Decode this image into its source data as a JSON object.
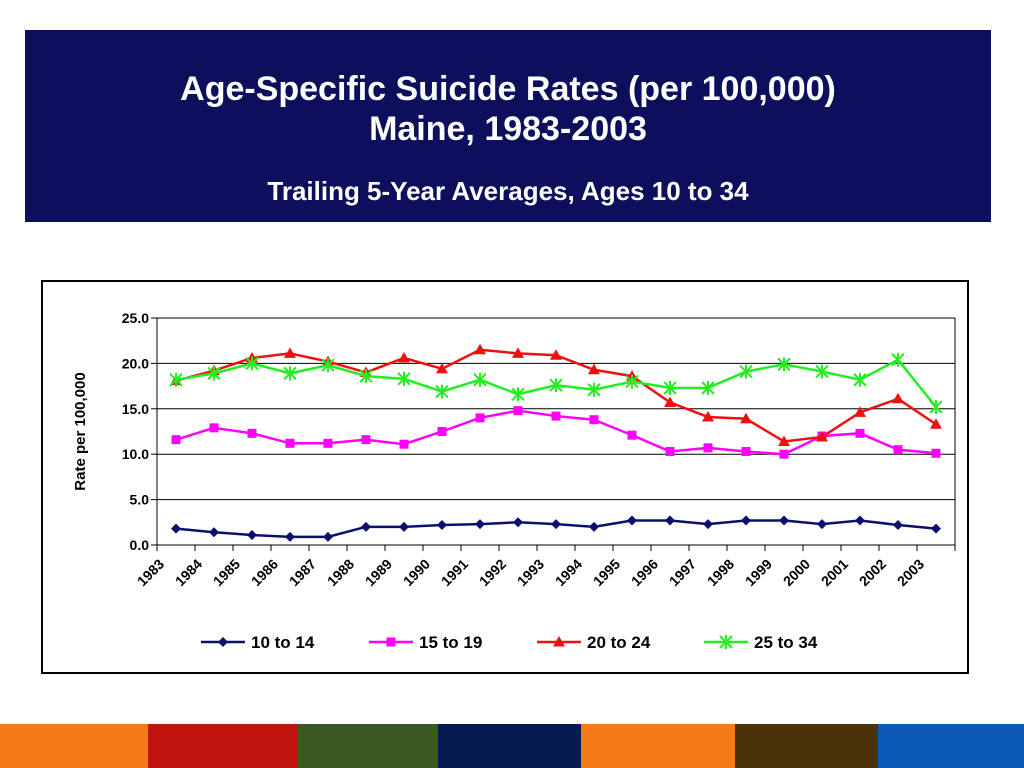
{
  "banner": {
    "title_line1": "Age-Specific Suicide Rates (per 100,000)",
    "title_line2": "Maine, 1983-2003",
    "subtitle": "Trailing 5-Year Averages, Ages 10 to 34",
    "background": "#0b0f5c"
  },
  "chart_data": {
    "type": "line",
    "title": "",
    "xlabel": "",
    "ylabel": "Rate per 100,000",
    "ylim": [
      0,
      25
    ],
    "yticks": [
      "0.0",
      "5.0",
      "10.0",
      "15.0",
      "20.0",
      "25.0"
    ],
    "grid": "horizontal",
    "legend": "bottom",
    "categories": [
      "1983",
      "1984",
      "1985",
      "1986",
      "1987",
      "1988",
      "1989",
      "1990",
      "1991",
      "1992",
      "1993",
      "1994",
      "1995",
      "1996",
      "1997",
      "1998",
      "1999",
      "2000",
      "2001",
      "2002",
      "2003"
    ],
    "x_points_per_category": 1.3,
    "series": [
      {
        "name": "10 to 14",
        "color": "#0b0f6e",
        "marker": "diamond",
        "values": [
          1.8,
          1.4,
          1.1,
          0.9,
          0.9,
          2.0,
          2.0,
          2.2,
          2.3,
          2.5,
          2.3,
          2.0,
          2.7,
          2.7,
          2.3,
          2.7,
          2.7,
          2.3,
          2.7,
          2.2,
          1.8
        ]
      },
      {
        "name": "15 to 19",
        "color": "#ff00ff",
        "marker": "square",
        "values": [
          11.6,
          12.9,
          12.3,
          11.2,
          11.2,
          11.6,
          11.1,
          12.5,
          14.0,
          14.8,
          14.2,
          13.8,
          12.1,
          10.3,
          10.7,
          10.3,
          10.0,
          12.0,
          12.3,
          10.5,
          10.1
        ]
      },
      {
        "name": "20 to 24",
        "color": "#ee1111",
        "marker": "triangle",
        "values": [
          18.1,
          19.2,
          20.6,
          21.1,
          20.2,
          19.0,
          20.6,
          19.4,
          21.5,
          21.1,
          20.9,
          19.3,
          18.6,
          15.7,
          14.1,
          13.9,
          11.4,
          11.9,
          14.6,
          16.1,
          13.3
        ]
      },
      {
        "name": "25 to 34",
        "color": "#22ee22",
        "marker": "asterisk",
        "values": [
          18.2,
          18.9,
          20.0,
          18.9,
          19.8,
          18.6,
          18.3,
          16.9,
          18.2,
          16.6,
          17.6,
          17.1,
          18.0,
          17.3,
          17.3,
          19.1,
          19.9,
          19.1,
          18.2,
          20.4,
          15.2
        ]
      }
    ]
  },
  "footer_stripe": [
    "#f47a1a",
    "#c0140f",
    "#3a5a22",
    "#081a52",
    "#f47a1a",
    "#4b3208",
    "#0a5ab8"
  ]
}
